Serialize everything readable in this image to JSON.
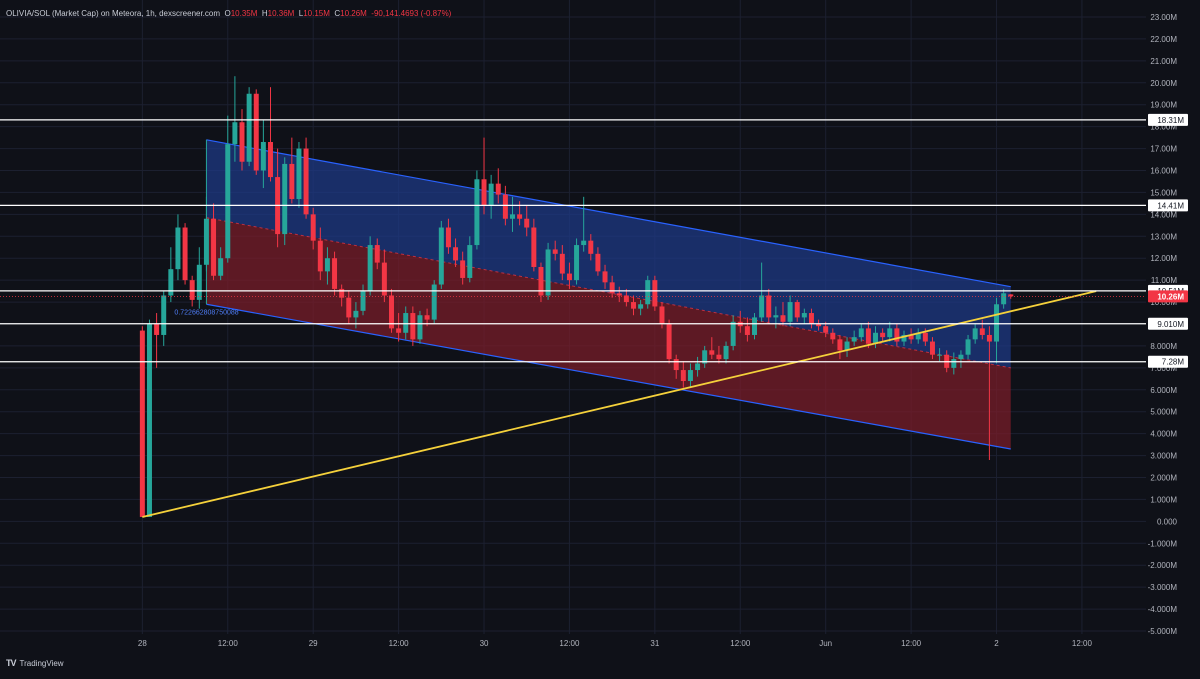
{
  "legend": {
    "symbol": "OLIVIA/SOL (Market Cap) on Meteora, 1h, dexscreener.com",
    "o_label": "O",
    "o_value": "10.35M",
    "h_label": "H",
    "h_value": "10.36M",
    "l_label": "L",
    "l_value": "10.15M",
    "c_label": "C",
    "c_value": "10.26M",
    "change": "-90,141.4693 (-0.87%)"
  },
  "brand": {
    "logo": "TV",
    "name": "TradingView"
  },
  "colors": {
    "background": "#0f1118",
    "up": "#26a69a",
    "down": "#f23645",
    "channel_upper_fill": "#1e3a8a",
    "channel_lower_fill": "#7f1d2a",
    "channel_line": "#2962ff",
    "trendline": "#f5d13b",
    "level_line": "#ffffff"
  },
  "chart_data": {
    "type": "candlestick",
    "y_unit": "M",
    "ylim": [
      -5,
      23
    ],
    "y_ticks": [
      {
        "v": 23,
        "label": "23.00M"
      },
      {
        "v": 22,
        "label": "22.00M"
      },
      {
        "v": 21,
        "label": "21.00M"
      },
      {
        "v": 20,
        "label": "20.00M"
      },
      {
        "v": 19,
        "label": "19.00M"
      },
      {
        "v": 18,
        "label": "18.00M"
      },
      {
        "v": 17,
        "label": "17.00M"
      },
      {
        "v": 16,
        "label": "16.00M"
      },
      {
        "v": 15,
        "label": "15.00M"
      },
      {
        "v": 14,
        "label": "14.00M"
      },
      {
        "v": 13,
        "label": "13.00M"
      },
      {
        "v": 12,
        "label": "12.00M"
      },
      {
        "v": 11,
        "label": "11.00M"
      },
      {
        "v": 10,
        "label": "10.00M"
      },
      {
        "v": 8,
        "label": "8.000M"
      },
      {
        "v": 7,
        "label": "7.000M"
      },
      {
        "v": 6,
        "label": "6.000M"
      },
      {
        "v": 5,
        "label": "5.000M"
      },
      {
        "v": 4,
        "label": "4.000M"
      },
      {
        "v": 3,
        "label": "3.000M"
      },
      {
        "v": 2,
        "label": "2.000M"
      },
      {
        "v": 1,
        "label": "1.000M"
      },
      {
        "v": 0,
        "label": "0.000"
      },
      {
        "v": -1,
        "label": "-1.000M"
      },
      {
        "v": -2,
        "label": "-2.000M"
      },
      {
        "v": -3,
        "label": "-3.000M"
      },
      {
        "v": -4,
        "label": "-4.000M"
      },
      {
        "v": -5,
        "label": "-5.000M"
      }
    ],
    "x_ticks": [
      {
        "t": 0,
        "label": "28"
      },
      {
        "t": 12,
        "label": "12:00"
      },
      {
        "t": 24,
        "label": "29"
      },
      {
        "t": 36,
        "label": "12:00"
      },
      {
        "t": 48,
        "label": "30"
      },
      {
        "t": 60,
        "label": "12:00"
      },
      {
        "t": 72,
        "label": "31"
      },
      {
        "t": 84,
        "label": "12:00"
      },
      {
        "t": 96,
        "label": "Jun"
      },
      {
        "t": 108,
        "label": "12:00"
      },
      {
        "t": 120,
        "label": "2"
      },
      {
        "t": 132,
        "label": "12:00"
      }
    ],
    "xlim": [
      -20,
      141
    ],
    "levels": [
      {
        "v": 18.31,
        "label": "18.31M"
      },
      {
        "v": 14.41,
        "label": "14.41M"
      },
      {
        "v": 10.51,
        "label": "10.51M"
      },
      {
        "v": 9.01,
        "label": "9.010M"
      },
      {
        "v": 7.28,
        "label": "7.28M"
      }
    ],
    "current_price": {
      "v": 10.26,
      "label": "10.26M"
    },
    "regression_channel": {
      "t_start": 9,
      "t_end": 122,
      "upper": [
        17.4,
        10.7
      ],
      "mid": [
        13.85,
        7.0
      ],
      "lower": [
        9.9,
        3.3
      ],
      "label": "0.722662808750088"
    },
    "trendline": {
      "t": [
        0,
        134
      ],
      "v": [
        0.2,
        10.5
      ]
    },
    "candles": [
      [
        0,
        8.7,
        8.9,
        0.2,
        0.2
      ],
      [
        1,
        0.2,
        9.2,
        0.2,
        9.0
      ],
      [
        2,
        9.0,
        9.5,
        7.0,
        8.5
      ],
      [
        3,
        8.5,
        10.5,
        8.0,
        10.3
      ],
      [
        4,
        10.3,
        12.5,
        10.0,
        11.5
      ],
      [
        5,
        11.5,
        14.0,
        11.0,
        13.4
      ],
      [
        6,
        13.4,
        13.6,
        10.8,
        11.0
      ],
      [
        7,
        11.0,
        11.2,
        9.8,
        10.1
      ],
      [
        8,
        10.1,
        12.5,
        9.7,
        11.7
      ],
      [
        9,
        11.7,
        14.8,
        11.4,
        13.8
      ],
      [
        10,
        13.8,
        14.5,
        11.0,
        11.2
      ],
      [
        11,
        11.2,
        12.5,
        11.0,
        12.0
      ],
      [
        12,
        12.0,
        18.5,
        11.8,
        17.2
      ],
      [
        13,
        17.2,
        20.3,
        16.4,
        18.2
      ],
      [
        14,
        18.2,
        18.8,
        16.0,
        16.4
      ],
      [
        15,
        16.4,
        19.8,
        16.2,
        19.5
      ],
      [
        16,
        19.5,
        19.7,
        15.8,
        16.0
      ],
      [
        17,
        16.0,
        18.3,
        15.2,
        17.3
      ],
      [
        18,
        17.3,
        19.8,
        15.5,
        15.7
      ],
      [
        19,
        15.7,
        17.0,
        12.5,
        13.1
      ],
      [
        20,
        13.1,
        16.6,
        12.6,
        16.3
      ],
      [
        21,
        16.3,
        17.5,
        14.5,
        14.7
      ],
      [
        22,
        14.7,
        17.3,
        14.3,
        17.0
      ],
      [
        23,
        17.0,
        17.5,
        13.8,
        14.0
      ],
      [
        24,
        14.0,
        14.3,
        12.4,
        12.8
      ],
      [
        25,
        12.8,
        13.4,
        11.0,
        11.4
      ],
      [
        26,
        11.4,
        12.5,
        10.8,
        12.0
      ],
      [
        27,
        12.0,
        12.3,
        10.3,
        10.6
      ],
      [
        28,
        10.6,
        10.8,
        9.8,
        10.2
      ],
      [
        29,
        10.2,
        10.5,
        9.0,
        9.3
      ],
      [
        30,
        9.3,
        10.0,
        8.8,
        9.6
      ],
      [
        31,
        9.6,
        10.8,
        9.4,
        10.5
      ],
      [
        32,
        10.5,
        13.0,
        10.3,
        12.6
      ],
      [
        33,
        12.6,
        12.9,
        11.5,
        11.8
      ],
      [
        34,
        11.8,
        12.4,
        10.0,
        10.3
      ],
      [
        35,
        10.3,
        10.6,
        8.6,
        8.8
      ],
      [
        36,
        8.8,
        9.5,
        8.2,
        8.6
      ],
      [
        37,
        8.6,
        9.8,
        8.3,
        9.5
      ],
      [
        38,
        9.5,
        9.8,
        8.0,
        8.3
      ],
      [
        39,
        8.3,
        9.6,
        8.1,
        9.4
      ],
      [
        40,
        9.4,
        9.7,
        8.9,
        9.2
      ],
      [
        41,
        9.2,
        11.0,
        9.0,
        10.8
      ],
      [
        42,
        10.8,
        13.7,
        10.6,
        13.4
      ],
      [
        43,
        13.4,
        13.8,
        12.2,
        12.5
      ],
      [
        44,
        12.5,
        12.9,
        11.6,
        11.9
      ],
      [
        45,
        11.9,
        12.3,
        10.8,
        11.1
      ],
      [
        46,
        11.1,
        13.0,
        10.9,
        12.6
      ],
      [
        47,
        12.6,
        16.0,
        12.4,
        15.6
      ],
      [
        48,
        15.6,
        17.5,
        14.0,
        14.4
      ],
      [
        49,
        14.4,
        15.8,
        13.8,
        15.4
      ],
      [
        50,
        15.4,
        16.1,
        14.5,
        14.9
      ],
      [
        51,
        14.9,
        15.3,
        13.5,
        13.8
      ],
      [
        52,
        13.8,
        14.8,
        13.2,
        14.0
      ],
      [
        53,
        14.0,
        14.6,
        13.5,
        13.8
      ],
      [
        54,
        13.8,
        14.4,
        13.0,
        13.4
      ],
      [
        55,
        13.4,
        13.8,
        11.4,
        11.6
      ],
      [
        56,
        11.6,
        11.8,
        10.0,
        10.3
      ],
      [
        57,
        10.3,
        12.7,
        10.1,
        12.4
      ],
      [
        58,
        12.4,
        12.8,
        11.9,
        12.2
      ],
      [
        59,
        12.2,
        12.6,
        11.0,
        11.3
      ],
      [
        60,
        11.3,
        11.8,
        10.6,
        11.0
      ],
      [
        61,
        11.0,
        12.9,
        10.8,
        12.6
      ],
      [
        62,
        12.6,
        14.8,
        12.3,
        12.8
      ],
      [
        63,
        12.8,
        13.1,
        11.9,
        12.2
      ],
      [
        64,
        12.2,
        12.5,
        11.2,
        11.4
      ],
      [
        65,
        11.4,
        11.7,
        10.6,
        10.9
      ],
      [
        66,
        10.9,
        11.2,
        10.2,
        10.4
      ],
      [
        67,
        10.4,
        10.7,
        10.0,
        10.3
      ],
      [
        68,
        10.3,
        10.6,
        9.8,
        10.0
      ],
      [
        69,
        10.0,
        10.3,
        9.4,
        9.7
      ],
      [
        70,
        9.7,
        10.1,
        9.4,
        9.9
      ],
      [
        71,
        9.9,
        11.2,
        9.7,
        11.0
      ],
      [
        72,
        11.0,
        11.2,
        9.6,
        9.8
      ],
      [
        73,
        9.8,
        10.0,
        8.8,
        9.0
      ],
      [
        74,
        9.0,
        9.2,
        7.2,
        7.4
      ],
      [
        75,
        7.4,
        7.6,
        6.5,
        6.9
      ],
      [
        76,
        6.9,
        7.3,
        6.1,
        6.4
      ],
      [
        77,
        6.4,
        7.2,
        6.1,
        6.9
      ],
      [
        78,
        6.9,
        7.5,
        6.6,
        7.2
      ],
      [
        79,
        7.2,
        8.0,
        7.0,
        7.8
      ],
      [
        80,
        7.8,
        8.4,
        7.4,
        7.6
      ],
      [
        81,
        7.6,
        8.0,
        7.2,
        7.4
      ],
      [
        82,
        7.4,
        8.2,
        7.2,
        8.0
      ],
      [
        83,
        8.0,
        9.4,
        7.8,
        9.1
      ],
      [
        84,
        9.1,
        9.6,
        8.6,
        8.9
      ],
      [
        85,
        8.9,
        9.3,
        8.2,
        8.5
      ],
      [
        86,
        8.5,
        9.5,
        8.3,
        9.3
      ],
      [
        87,
        9.3,
        11.8,
        9.1,
        10.3
      ],
      [
        88,
        10.3,
        10.6,
        9.0,
        9.3
      ],
      [
        89,
        9.3,
        9.8,
        8.8,
        9.4
      ],
      [
        90,
        9.4,
        10.0,
        8.9,
        9.1
      ],
      [
        91,
        9.1,
        10.3,
        8.9,
        10.0
      ],
      [
        92,
        10.0,
        10.1,
        9.1,
        9.3
      ],
      [
        93,
        9.3,
        9.7,
        9.0,
        9.5
      ],
      [
        94,
        9.5,
        9.7,
        8.8,
        9.0
      ],
      [
        95,
        9.0,
        9.2,
        8.7,
        8.9
      ],
      [
        96,
        8.9,
        9.1,
        8.4,
        8.6
      ],
      [
        97,
        8.6,
        8.8,
        8.1,
        8.3
      ],
      [
        98,
        8.3,
        8.5,
        7.4,
        7.8
      ],
      [
        99,
        7.8,
        8.4,
        7.5,
        8.2
      ],
      [
        100,
        8.2,
        8.7,
        8.0,
        8.4
      ],
      [
        101,
        8.4,
        9.0,
        8.2,
        8.8
      ],
      [
        102,
        8.8,
        9.1,
        7.9,
        8.1
      ],
      [
        103,
        8.1,
        8.9,
        7.9,
        8.6
      ],
      [
        104,
        8.6,
        8.8,
        8.2,
        8.4
      ],
      [
        105,
        8.4,
        9.1,
        8.2,
        8.8
      ],
      [
        106,
        8.8,
        9.0,
        8.0,
        8.2
      ],
      [
        107,
        8.2,
        8.7,
        8.0,
        8.5
      ],
      [
        108,
        8.5,
        8.8,
        8.1,
        8.3
      ],
      [
        109,
        8.3,
        8.8,
        8.1,
        8.6
      ],
      [
        110,
        8.6,
        8.8,
        8.0,
        8.2
      ],
      [
        111,
        8.2,
        8.4,
        7.4,
        7.6
      ],
      [
        112,
        7.6,
        7.9,
        7.3,
        7.6
      ],
      [
        113,
        7.6,
        7.8,
        6.8,
        7.0
      ],
      [
        114,
        7.0,
        7.7,
        6.7,
        7.4
      ],
      [
        115,
        7.4,
        7.8,
        7.0,
        7.6
      ],
      [
        116,
        7.6,
        8.5,
        7.4,
        8.3
      ],
      [
        117,
        8.3,
        9.0,
        8.1,
        8.8
      ],
      [
        118,
        8.8,
        9.2,
        8.3,
        8.5
      ],
      [
        119,
        8.5,
        8.9,
        2.8,
        8.2
      ],
      [
        120,
        8.2,
        10.2,
        7.2,
        9.9
      ],
      [
        121,
        9.9,
        10.6,
        9.7,
        10.4
      ],
      [
        122,
        10.35,
        10.36,
        10.15,
        10.26
      ]
    ]
  }
}
